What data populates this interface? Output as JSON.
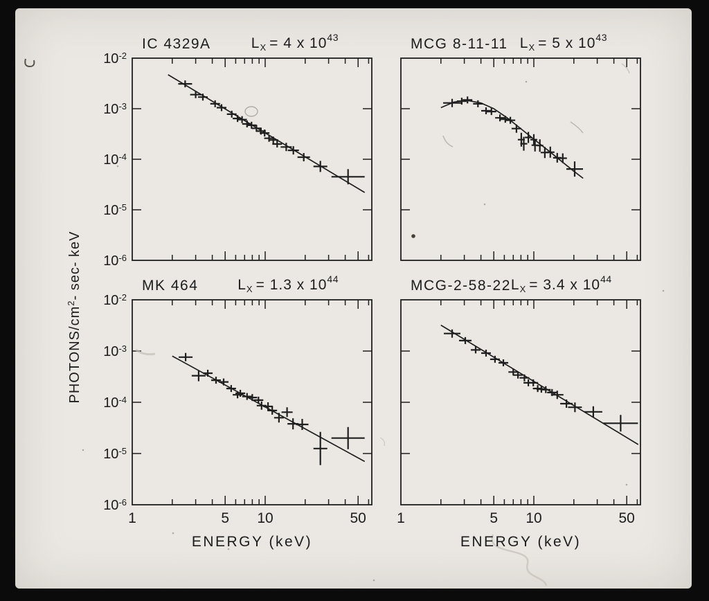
{
  "figure": {
    "xlabel": "ENERGY (keV)",
    "ylabel": {
      "pre": "PHOTONS/cm",
      "sup": "2",
      "post": "- sec- keV"
    },
    "ytick_base": "10",
    "ytick_exps": [
      "-2",
      "-3",
      "-4",
      "-5",
      "-6"
    ],
    "xtick_labels": [
      "1",
      "5",
      "10",
      "50"
    ],
    "xtick_energies": [
      1,
      5,
      10,
      50
    ],
    "colors": {
      "ink": "#1f1f1f",
      "slide": "#ebe8e3",
      "border": "#0b0b0b"
    }
  },
  "chart_data": [
    {
      "type": "scatter",
      "title": "IC 4329A",
      "lum": {
        "pre": "L",
        "sub": "X",
        "eq": "= 4 x 10",
        "exp": "43"
      },
      "xscale": "log",
      "yscale": "log",
      "xlim": [
        1,
        63
      ],
      "ylim": [
        1e-06,
        0.01
      ],
      "xlabel": "ENERGY (keV)",
      "ylabel": "PHOTONS/cm^2-sec-keV",
      "xticks_labeled": [
        1,
        5,
        10,
        50
      ],
      "fit_line": [
        [
          1.86,
          0.0047
        ],
        [
          56,
          2.2e-05
        ]
      ],
      "points": [
        [
          2.5,
          0.0031,
          10,
          5
        ],
        [
          3.0,
          0.0019,
          8,
          5
        ],
        [
          3.4,
          0.0017,
          7,
          5
        ],
        [
          4.2,
          0.00125,
          7,
          5
        ],
        [
          4.7,
          0.00105,
          7,
          5
        ],
        [
          5.6,
          0.00078,
          7,
          5
        ],
        [
          6.2,
          0.00064,
          7,
          5
        ],
        [
          6.7,
          0.00061,
          7,
          5
        ],
        [
          7.3,
          0.0005,
          7,
          5
        ],
        [
          7.9,
          0.00047,
          7,
          5
        ],
        [
          8.6,
          0.00041,
          7,
          5
        ],
        [
          9.3,
          0.00036,
          7,
          5
        ],
        [
          9.9,
          0.00033,
          7,
          5
        ],
        [
          10.7,
          0.00026,
          7,
          5
        ],
        [
          11.5,
          0.00024,
          7,
          5
        ],
        [
          12.3,
          0.0002,
          7,
          5
        ],
        [
          14.4,
          0.000175,
          8,
          6
        ],
        [
          16.3,
          0.00015,
          8,
          6
        ],
        [
          19.5,
          0.00011,
          9,
          6
        ],
        [
          26,
          7.2e-05,
          10,
          8
        ],
        [
          42,
          4.5e-05,
          24,
          11
        ]
      ]
    },
    {
      "type": "scatter",
      "title": "MCG 8-11-11",
      "lum": {
        "pre": "L",
        "sub": "X",
        "eq": "= 5 x 10",
        "exp": "43"
      },
      "xscale": "log",
      "yscale": "log",
      "xlim": [
        1,
        63
      ],
      "ylim": [
        1e-06,
        0.01
      ],
      "xlabel": "ENERGY (keV)",
      "ylabel": "PHOTONS/cm^2-sec-keV",
      "xticks_labeled": [
        1,
        5,
        10,
        50
      ],
      "fit_line": [
        [
          2.0,
          0.00105
        ],
        [
          2.5,
          0.00135
        ],
        [
          3.1,
          0.00147
        ],
        [
          4.0,
          0.0013
        ],
        [
          5.0,
          0.001
        ],
        [
          6.3,
          0.00066
        ],
        [
          8.0,
          0.0004
        ],
        [
          10,
          0.00025
        ],
        [
          13,
          0.000145
        ],
        [
          16,
          9.3e-05
        ],
        [
          20,
          5.8e-05
        ],
        [
          23.5,
          4.2e-05
        ]
      ],
      "points": [
        [
          2.43,
          0.0013,
          13,
          6
        ],
        [
          2.87,
          0.00141,
          7,
          5
        ],
        [
          3.17,
          0.00149,
          7,
          5
        ],
        [
          3.8,
          0.00125,
          7,
          5
        ],
        [
          4.37,
          0.00091,
          7,
          5
        ],
        [
          4.8,
          0.00088,
          7,
          5
        ],
        [
          5.56,
          0.00066,
          7,
          5
        ],
        [
          6.1,
          0.00062,
          7,
          5
        ],
        [
          6.66,
          0.00059,
          7,
          5
        ],
        [
          7.4,
          0.000405,
          7,
          6
        ],
        [
          8.05,
          0.000244,
          5,
          10
        ],
        [
          8.4,
          0.000203,
          5,
          10
        ],
        [
          9.1,
          0.00027,
          5,
          8
        ],
        [
          10,
          0.000244,
          5,
          8
        ],
        [
          10.2,
          0.00019,
          5,
          9
        ],
        [
          11.1,
          0.000187,
          5,
          9
        ],
        [
          12.1,
          0.000136,
          6,
          8
        ],
        [
          13.3,
          0.000138,
          6,
          8
        ],
        [
          15,
          0.000107,
          6,
          7
        ],
        [
          16.5,
          0.000105,
          6,
          7
        ],
        [
          20.3,
          6.4e-05,
          12,
          11
        ]
      ]
    },
    {
      "type": "scatter",
      "title": "MK 464",
      "lum": {
        "pre": "L",
        "sub": "X",
        "eq": "= 1.3 x 10",
        "exp": "44"
      },
      "xscale": "log",
      "yscale": "log",
      "xlim": [
        1,
        63
      ],
      "ylim": [
        1e-06,
        0.01
      ],
      "xlabel": "ENERGY (keV)",
      "ylabel": "PHOTONS/cm^2-sec-keV",
      "xticks_labeled": [
        1,
        5,
        10,
        50
      ],
      "fit_line": [
        [
          2.0,
          0.0008
        ],
        [
          56,
          7e-06
        ]
      ],
      "points": [
        [
          2.52,
          0.00076,
          10,
          6
        ],
        [
          3.16,
          0.00033,
          10,
          8
        ],
        [
          3.7,
          0.00037,
          7,
          5
        ],
        [
          4.27,
          0.00027,
          7,
          5
        ],
        [
          4.87,
          0.00025,
          7,
          5
        ],
        [
          5.55,
          0.000186,
          7,
          5
        ],
        [
          6.2,
          0.00014,
          7,
          5
        ],
        [
          6.5,
          0.00015,
          7,
          5
        ],
        [
          7.3,
          0.00013,
          7,
          5
        ],
        [
          8.0,
          0.000124,
          7,
          5
        ],
        [
          8.9,
          0.00011,
          7,
          5
        ],
        [
          9.4,
          8.6e-05,
          7,
          6
        ],
        [
          10.5,
          8.3e-05,
          7,
          6
        ],
        [
          11.3,
          6.9e-05,
          7,
          6
        ],
        [
          12.7,
          5e-05,
          7,
          7
        ],
        [
          14.6,
          6.4e-05,
          8,
          7
        ],
        [
          16.2,
          3.8e-05,
          8,
          8
        ],
        [
          19,
          3.7e-05,
          9,
          8
        ],
        [
          26,
          1.25e-05,
          10,
          24
        ],
        [
          42,
          2e-05,
          24,
          16
        ]
      ]
    },
    {
      "type": "scatter",
      "title": "MCG-2-58-22",
      "lum": {
        "pre": "L",
        "sub": "X",
        "eq": "= 3.4 x 10",
        "exp": "44"
      },
      "xscale": "log",
      "yscale": "log",
      "xlim": [
        1,
        63
      ],
      "ylim": [
        1e-06,
        0.01
      ],
      "xlabel": "ENERGY (keV)",
      "ylabel": "PHOTONS/cm^2-sec-keV",
      "xticks_labeled": [
        1,
        5,
        10,
        50
      ],
      "fit_line": [
        [
          2.0,
          0.0032
        ],
        [
          61,
          1.5e-05
        ]
      ],
      "points": [
        [
          2.43,
          0.0022,
          12,
          6
        ],
        [
          3.05,
          0.0016,
          9,
          5
        ],
        [
          3.65,
          0.00105,
          7,
          5
        ],
        [
          4.37,
          0.00091,
          7,
          5
        ],
        [
          5.1,
          0.00069,
          7,
          5
        ],
        [
          5.9,
          0.00059,
          7,
          5
        ],
        [
          7.0,
          0.00039,
          7,
          5
        ],
        [
          7.6,
          0.00034,
          7,
          5
        ],
        [
          8.5,
          0.0003,
          7,
          5
        ],
        [
          9.1,
          0.00024,
          7,
          5
        ],
        [
          9.9,
          0.00024,
          7,
          5
        ],
        [
          10.7,
          0.000186,
          7,
          5
        ],
        [
          11.4,
          0.00018,
          7,
          5
        ],
        [
          12.3,
          0.000176,
          7,
          5
        ],
        [
          13.7,
          0.000155,
          7,
          5
        ],
        [
          15,
          0.00014,
          9,
          6
        ],
        [
          17.6,
          9.4e-05,
          9,
          6
        ],
        [
          20.4,
          8e-05,
          10,
          7
        ],
        [
          28,
          6.5e-05,
          13,
          8
        ],
        [
          45,
          3.9e-05,
          25,
          12
        ]
      ]
    }
  ]
}
